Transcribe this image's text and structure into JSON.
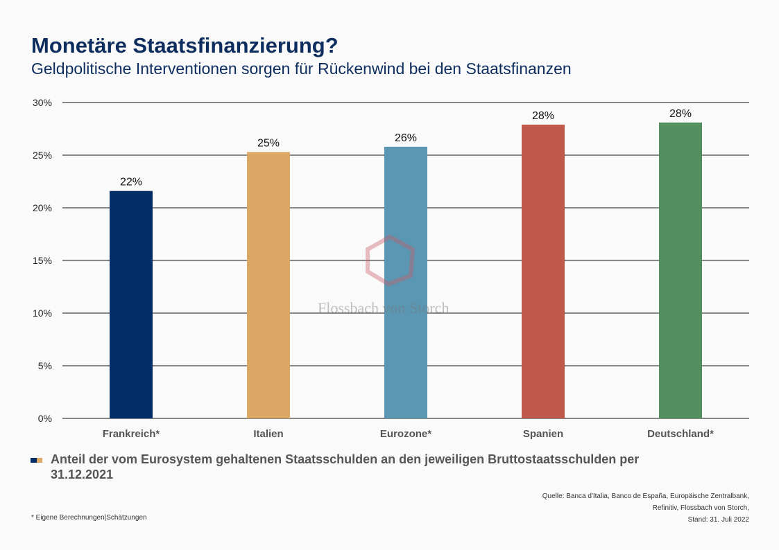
{
  "title": "Monetäre Staatsfinanzierung?",
  "subtitle": "Geldpolitische Interventionen sorgen für Rückenwind bei den Staatsfinanzen",
  "chart_data": {
    "type": "bar",
    "categories": [
      "Frankreich*",
      "Italien",
      "Eurozone*",
      "Spanien",
      "Deutschland*"
    ],
    "values": [
      21.6,
      25.3,
      25.8,
      27.9,
      28.1
    ],
    "data_labels": [
      "22%",
      "25%",
      "26%",
      "28%",
      "28%"
    ],
    "colors": [
      "#012e66",
      "#dba866",
      "#5b96b2",
      "#c0584b",
      "#529060"
    ],
    "ylim": [
      0,
      30
    ],
    "yticks": [
      "0%",
      "5%",
      "10%",
      "15%",
      "20%",
      "25%",
      "30%"
    ],
    "grid": true
  },
  "legend": {
    "text": "Anteil der vom Eurosystem gehaltenen Staatsschulden an den jeweiligen Bruttostaatsschulden per 31.12.2021",
    "colors": [
      "#012e66",
      "#dba866"
    ]
  },
  "source": [
    "Quelle: Banca d'Italia, Banco de España, Europäische Zentralbank,",
    "Refinitiv, Flossbach von Storch,",
    "Stand: 31. Juli 2022"
  ],
  "footnote": "* Eigene Berechnungen|Schätzungen",
  "watermark": "Flossbach von Storch"
}
